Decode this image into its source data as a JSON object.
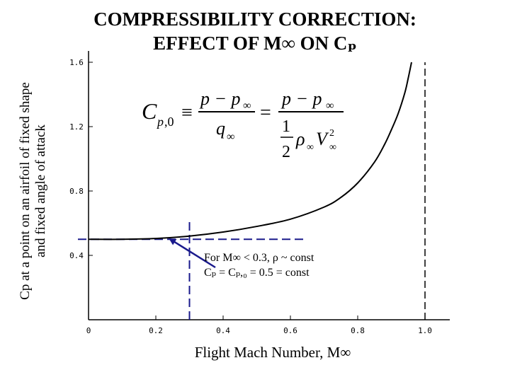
{
  "title": [
    "COMPRESSIBILITY CORRECTION:",
    "EFFECT OF M∞ ON Cₚ"
  ],
  "ylabel": [
    "Cp at a point on an airfoil of fixed shape",
    "and fixed angle of attack"
  ],
  "xlabel": "Flight Mach Number, M∞",
  "annotation": [
    "For M∞ < 0.3, ρ ~ const",
    "Cₚ = Cₚ,₀ = 0.5 = const"
  ],
  "colors": {
    "curve": "#000000",
    "dashed": "#1a1a8c",
    "arrow": "#1a1a8c",
    "axis": "#000000"
  },
  "chart_data": {
    "type": "line",
    "title": "COMPRESSIBILITY CORRECTION: EFFECT OF M∞ ON CP",
    "xlabel": "Flight Mach Number, M∞",
    "ylabel": "Cp at a point on an airfoil of fixed shape and fixed angle of attack",
    "xlim": [
      0,
      1.0
    ],
    "ylim": [
      0,
      1.6
    ],
    "x_ticks": [
      "0",
      "0.2",
      "0.4",
      "0.6",
      "0.8",
      "1.0"
    ],
    "y_ticks": [
      "0.4",
      "0.8",
      "1.2",
      "1.6"
    ],
    "grid": false,
    "series": [
      {
        "x": [
          0.0,
          0.1,
          0.2,
          0.3,
          0.4,
          0.5,
          0.6,
          0.7,
          0.75,
          0.8,
          0.85,
          0.88,
          0.9,
          0.92,
          0.94,
          0.95,
          0.96
        ],
        "values": [
          0.5,
          0.5,
          0.505,
          0.52,
          0.545,
          0.58,
          0.625,
          0.7,
          0.76,
          0.85,
          0.98,
          1.09,
          1.18,
          1.28,
          1.41,
          1.5,
          1.6
        ]
      }
    ],
    "reference_lines": [
      {
        "orientation": "horizontal",
        "y": 0.5,
        "x_range": [
          0,
          0.65
        ],
        "style": "dashed"
      },
      {
        "orientation": "vertical",
        "x": 0.3,
        "y_range": [
          0,
          0.62
        ],
        "style": "dashed"
      },
      {
        "orientation": "vertical",
        "x": 1.0,
        "y_range": [
          0,
          1.6
        ],
        "style": "dashed"
      }
    ]
  }
}
